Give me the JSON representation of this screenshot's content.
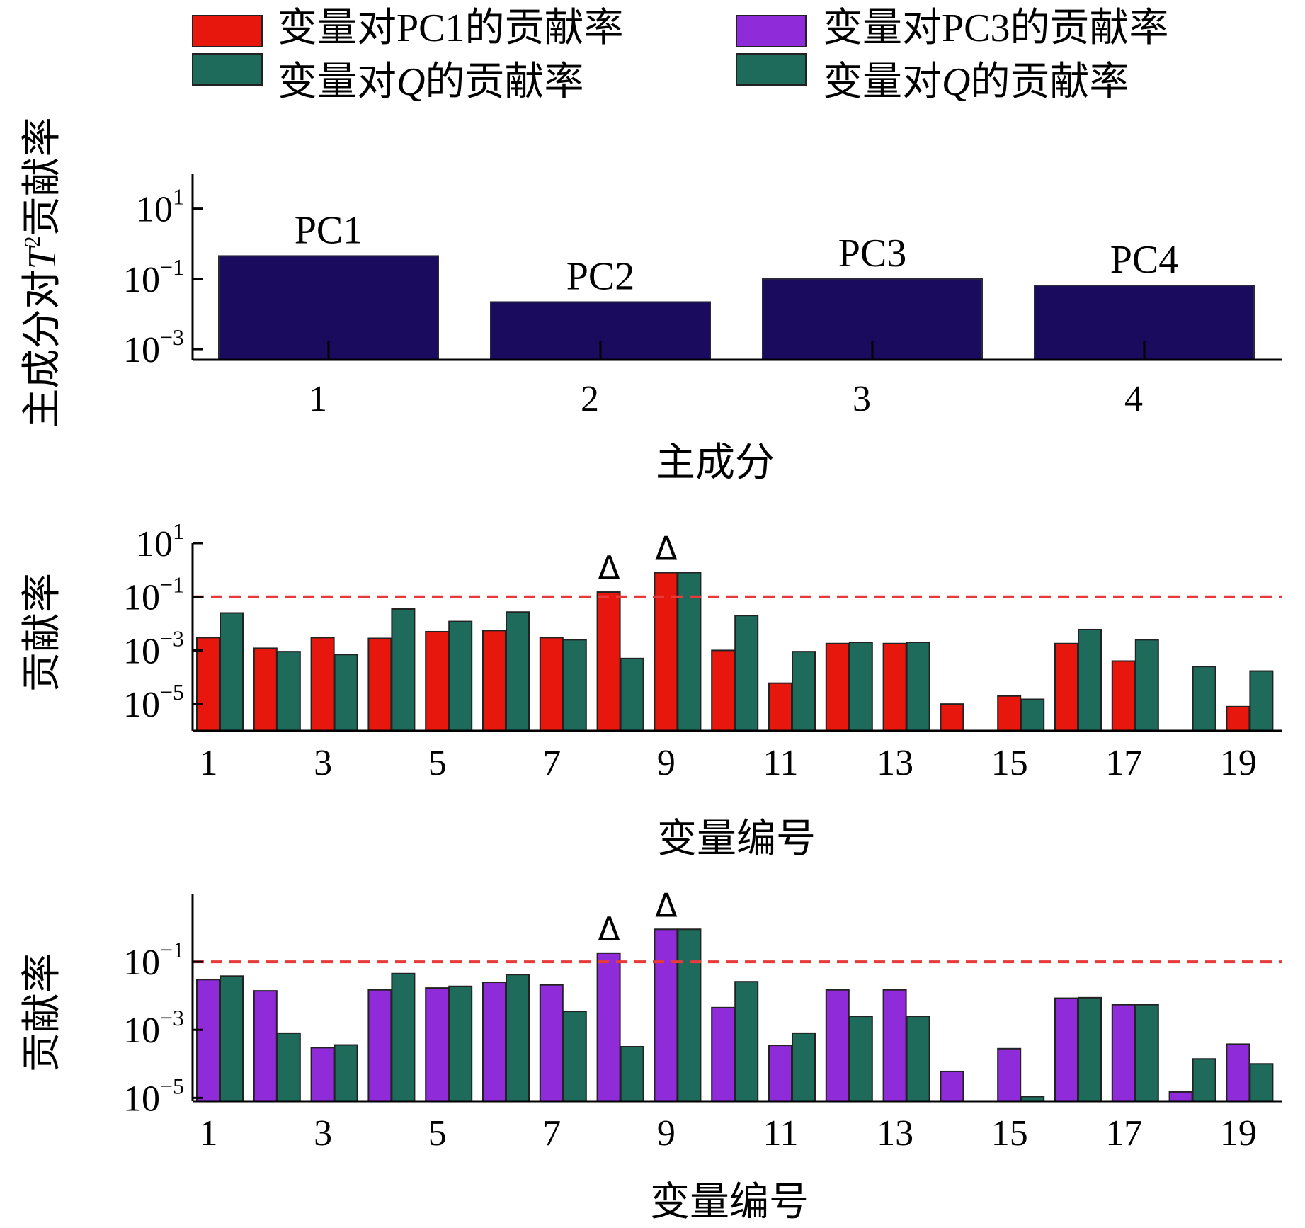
{
  "legend": {
    "items": [
      {
        "prefix": "变量对PC1的贡献率",
        "italic": "",
        "suffix": "",
        "color": "#e8170e"
      },
      {
        "prefix": "变量对",
        "italic": "Q",
        "suffix": "的贡献率",
        "color": "#1e6b5c"
      },
      {
        "prefix": "变量对PC3的贡献率",
        "italic": "",
        "suffix": "",
        "color": "#8f2bd9"
      },
      {
        "prefix": "变量对",
        "italic": "Q",
        "suffix": "的贡献率",
        "color": "#1e6b5c"
      }
    ]
  },
  "chart_data": [
    {
      "type": "bar",
      "scale": "log",
      "ylabel_prefix": "主成分对",
      "ylabel_italic": "T",
      "ylabel_sup": "2",
      "ylabel_suffix": "贡献率",
      "xlabel": "主成分",
      "categories": [
        "1",
        "2",
        "3",
        "4"
      ],
      "bar_labels": [
        "PC1",
        "PC2",
        "PC3",
        "PC4"
      ],
      "values": [
        0.45,
        0.022,
        0.1,
        0.065
      ],
      "yticks": [
        {
          "base": "10",
          "exp": "1",
          "value": 10
        },
        {
          "base": "10",
          "exp": "−1",
          "value": 0.1
        },
        {
          "base": "10",
          "exp": "−3",
          "value": 0.001
        }
      ],
      "ylim": [
        0.0005,
        100
      ],
      "bar_color": "#1a0b5e"
    },
    {
      "type": "bar",
      "scale": "log",
      "ylabel": "贡献率",
      "xlabel": "变量编号",
      "categories": [
        "1",
        "2",
        "3",
        "4",
        "5",
        "6",
        "7",
        "8",
        "9",
        "10",
        "11",
        "12",
        "13",
        "14",
        "15",
        "16",
        "17",
        "18",
        "19"
      ],
      "xticklabels": [
        "1",
        "3",
        "5",
        "7",
        "9",
        "11",
        "13",
        "15",
        "17",
        "19"
      ],
      "series": [
        {
          "ref": "变量对PC1的贡献率",
          "color": "#e8170e",
          "values": [
            0.003,
            0.0012,
            0.003,
            0.0028,
            0.005,
            0.0055,
            0.003,
            0.15,
            0.8,
            0.001,
            6e-05,
            0.0018,
            0.0018,
            1e-05,
            2e-05,
            0.0018,
            0.0004,
            null,
            8e-06
          ]
        },
        {
          "ref": "变量对Q的贡献率",
          "color": "#1e6b5c",
          "values": [
            0.025,
            0.0009,
            0.0007,
            0.035,
            0.012,
            0.027,
            0.0025,
            0.0005,
            0.8,
            0.02,
            0.0009,
            0.002,
            0.002,
            null,
            1.5e-05,
            0.006,
            0.0025,
            0.00025,
            0.00017
          ]
        }
      ],
      "threshold": 0.1,
      "threshold_color": "#e83a3a",
      "markers": [
        {
          "category": "8",
          "symbol": "Δ"
        },
        {
          "category": "9",
          "symbol": "Δ"
        }
      ],
      "yticks": [
        {
          "base": "10",
          "exp": "1",
          "value": 10
        },
        {
          "base": "10",
          "exp": "−1",
          "value": 0.1
        },
        {
          "base": "10",
          "exp": "−3",
          "value": 0.001
        },
        {
          "base": "10",
          "exp": "−5",
          "value": 1e-05
        }
      ],
      "ylim": [
        1e-06,
        10
      ]
    },
    {
      "type": "bar",
      "scale": "log",
      "ylabel": "贡献率",
      "xlabel": "变量编号",
      "categories": [
        "1",
        "2",
        "3",
        "4",
        "5",
        "6",
        "7",
        "8",
        "9",
        "10",
        "11",
        "12",
        "13",
        "14",
        "15",
        "16",
        "17",
        "18",
        "19"
      ],
      "xticklabels": [
        "1",
        "3",
        "5",
        "7",
        "9",
        "11",
        "13",
        "15",
        "17",
        "19"
      ],
      "series": [
        {
          "ref": "变量对PC3的贡献率",
          "color": "#8f2bd9",
          "values": [
            0.03,
            0.014,
            0.0003,
            0.015,
            0.017,
            0.025,
            0.021,
            0.18,
            0.9,
            0.0045,
            0.00035,
            0.015,
            0.015,
            6e-05,
            0.00028,
            0.0085,
            0.0055,
            1.5e-05,
            0.00038
          ]
        },
        {
          "ref": "变量对Q的贡献率",
          "color": "#1e6b5c",
          "values": [
            0.038,
            0.0008,
            0.00036,
            0.045,
            0.019,
            0.042,
            0.0035,
            0.00032,
            0.9,
            0.026,
            0.0008,
            0.0025,
            0.0025,
            null,
            1.1e-05,
            0.0088,
            0.0055,
            0.00014,
            0.0001
          ]
        }
      ],
      "threshold": 0.1,
      "threshold_color": "#e83a3a",
      "markers": [
        {
          "category": "8",
          "symbol": "Δ"
        },
        {
          "category": "9",
          "symbol": "Δ"
        }
      ],
      "yticks": [
        {
          "base": "10",
          "exp": "−1",
          "value": 0.1
        },
        {
          "base": "10",
          "exp": "−3",
          "value": 0.001
        },
        {
          "base": "10",
          "exp": "−5",
          "value": 1e-05
        }
      ],
      "ylim": [
        8e-06,
        10
      ]
    }
  ]
}
